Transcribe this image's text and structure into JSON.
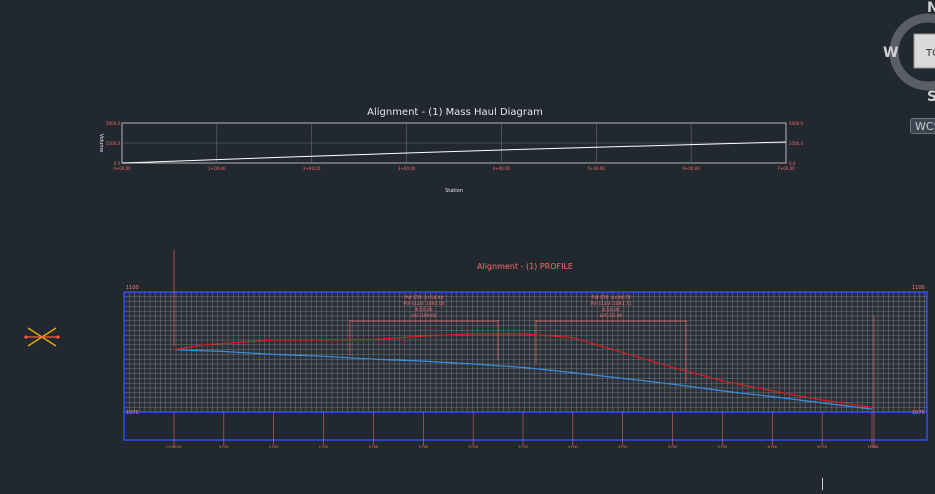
{
  "viewcube": {
    "north": "N",
    "west": "W",
    "south": "S",
    "face": "TOP",
    "wcs": "WCS"
  },
  "mass_haul": {
    "title": "Alignment - (1) Mass Haul Diagram",
    "ylabel": "Volume",
    "xlabel": "Station",
    "ytick_labels": [
      "5000.0",
      "2500.0",
      "0.0"
    ],
    "xtick_labels": [
      "0+00.00",
      "1+00.00",
      "2+00.00",
      "3+00.00",
      "4+00.00",
      "5+00.00",
      "6+00.00",
      "7+00.00"
    ]
  },
  "profile": {
    "title": "Alignment - (1) PROFILE",
    "elev_top": "1100",
    "elev_bottom": "1075",
    "vc1": [
      "PVI STA: 2+58.44",
      "PVI ELEV: 1093.00",
      "K:50.00",
      "LVC:100.00"
    ],
    "vc2": [
      "PVI STA: 4+99.71",
      "PVI ELEV: 1093.71",
      "K:50.00",
      "LVC:50.00"
    ],
    "station_labels": [
      "0+00.00",
      "0+50",
      "1+00",
      "1+50",
      "2+00",
      "2+50",
      "3+00",
      "3+50",
      "4+00",
      "4+50",
      "5+00",
      "5+50",
      "6+00",
      "6+50",
      "7+00",
      "7+02"
    ]
  },
  "chart_data": [
    {
      "type": "line",
      "title": "Alignment - (1) Mass Haul Diagram",
      "xlabel": "Station",
      "ylabel": "Volume",
      "ylim": [
        0,
        5000
      ],
      "xlim": [
        0,
        700
      ],
      "grid": true,
      "series": [
        {
          "x": [
            0,
            100,
            200,
            300,
            400,
            500,
            600,
            700
          ],
          "y": [
            0,
            420,
            850,
            1250,
            1630,
            1970,
            2290,
            2630
          ]
        }
      ]
    },
    {
      "type": "line",
      "title": "Alignment - (1) PROFILE",
      "ylim": [
        1075,
        1100
      ],
      "xlim": [
        0,
        702
      ],
      "grid": true,
      "series": [
        {
          "x": [
            0,
            50,
            100,
            150,
            200,
            250,
            300,
            350,
            400,
            450,
            500,
            550,
            600,
            650,
            700
          ],
          "y": [
            1088.0,
            1087.6,
            1087.0,
            1086.6,
            1086.0,
            1085.6,
            1085.0,
            1084.3,
            1083.2,
            1082.0,
            1080.8,
            1079.4,
            1078.2,
            1076.9,
            1075.6
          ]
        },
        {
          "x": [
            0,
            30,
            100,
            200,
            250,
            300,
            350,
            400,
            450,
            500,
            550,
            600,
            650,
            700
          ],
          "y": [
            1088.0,
            1089.0,
            1090.0,
            1090.1,
            1090.8,
            1091.3,
            1091.3,
            1090.5,
            1087.4,
            1084.3,
            1081.5,
            1079.4,
            1077.5,
            1076.0
          ]
        }
      ]
    }
  ]
}
